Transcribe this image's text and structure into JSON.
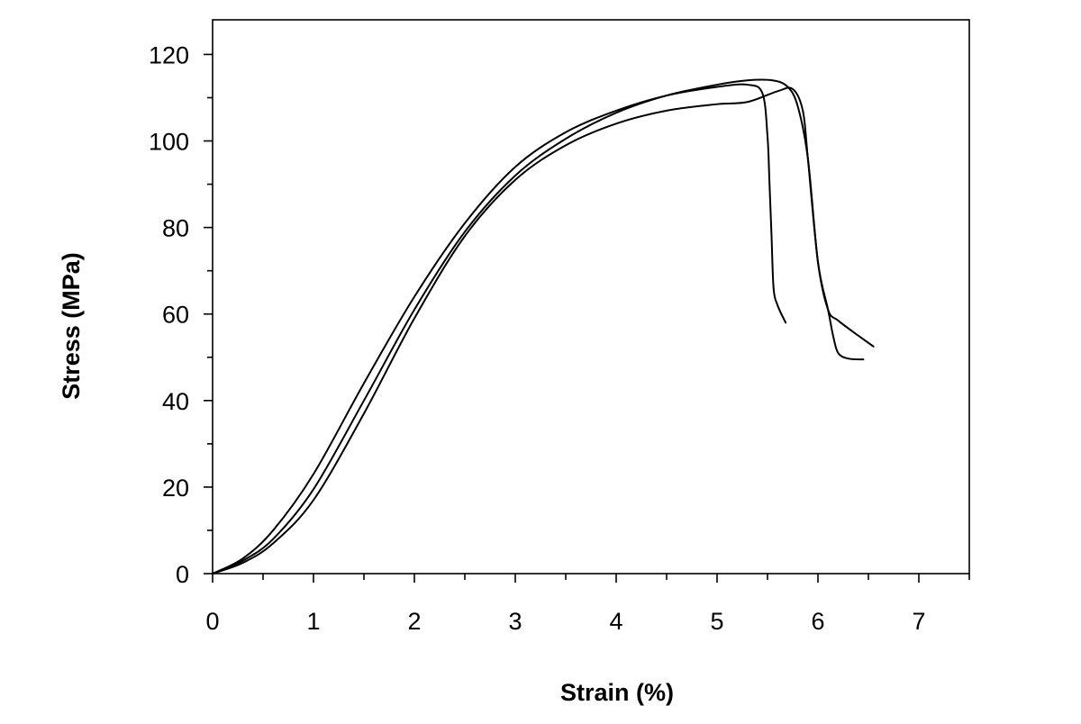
{
  "chart_data": {
    "type": "line",
    "title": "",
    "xlabel": "Strain (%)",
    "ylabel": "Stress (MPa)",
    "xlim": [
      0,
      7.5
    ],
    "ylim": [
      0,
      128
    ],
    "xticks": [
      0,
      1,
      2,
      3,
      4,
      5,
      6,
      7
    ],
    "yticks": [
      0,
      20,
      40,
      60,
      80,
      100,
      120
    ],
    "grid": false,
    "legend": "none",
    "line_color": "#000000",
    "series": [
      {
        "x": [
          0,
          0.3,
          0.6,
          1.0,
          1.5,
          2.0,
          2.5,
          3.0,
          3.5,
          4.0,
          4.5,
          5.0,
          5.3,
          5.45,
          5.5,
          5.52,
          5.54,
          5.56,
          5.6,
          5.68
        ],
        "y": [
          0,
          3.5,
          10,
          23,
          44,
          64,
          81,
          94,
          102,
          107,
          110.5,
          112.5,
          113,
          111,
          101,
          90,
          78,
          66,
          62,
          58
        ]
      },
      {
        "x": [
          0,
          0.3,
          0.6,
          1.0,
          1.5,
          2.0,
          2.5,
          3.0,
          3.5,
          4.0,
          4.5,
          5.0,
          5.3,
          5.55,
          5.7,
          5.8,
          5.9,
          6.0,
          6.1,
          6.2,
          6.4,
          6.55
        ],
        "y": [
          0,
          3,
          8,
          19.5,
          40,
          61,
          79,
          92,
          100.5,
          106.5,
          110.5,
          113,
          114,
          114,
          112.5,
          108,
          96,
          72,
          61,
          58.5,
          55,
          52.5
        ]
      },
      {
        "x": [
          0,
          0.3,
          0.6,
          1.0,
          1.5,
          2.0,
          2.5,
          3.0,
          3.5,
          4.0,
          4.5,
          5.0,
          5.3,
          5.6,
          5.75,
          5.85,
          5.9,
          6.0,
          6.1,
          6.15,
          6.2,
          6.3,
          6.45
        ],
        "y": [
          0,
          2.5,
          7,
          17,
          37,
          59,
          78,
          91,
          99,
          104,
          107,
          108.5,
          109,
          111.5,
          112,
          107,
          96,
          72,
          61,
          55,
          51,
          49.7,
          49.5
        ]
      }
    ]
  }
}
